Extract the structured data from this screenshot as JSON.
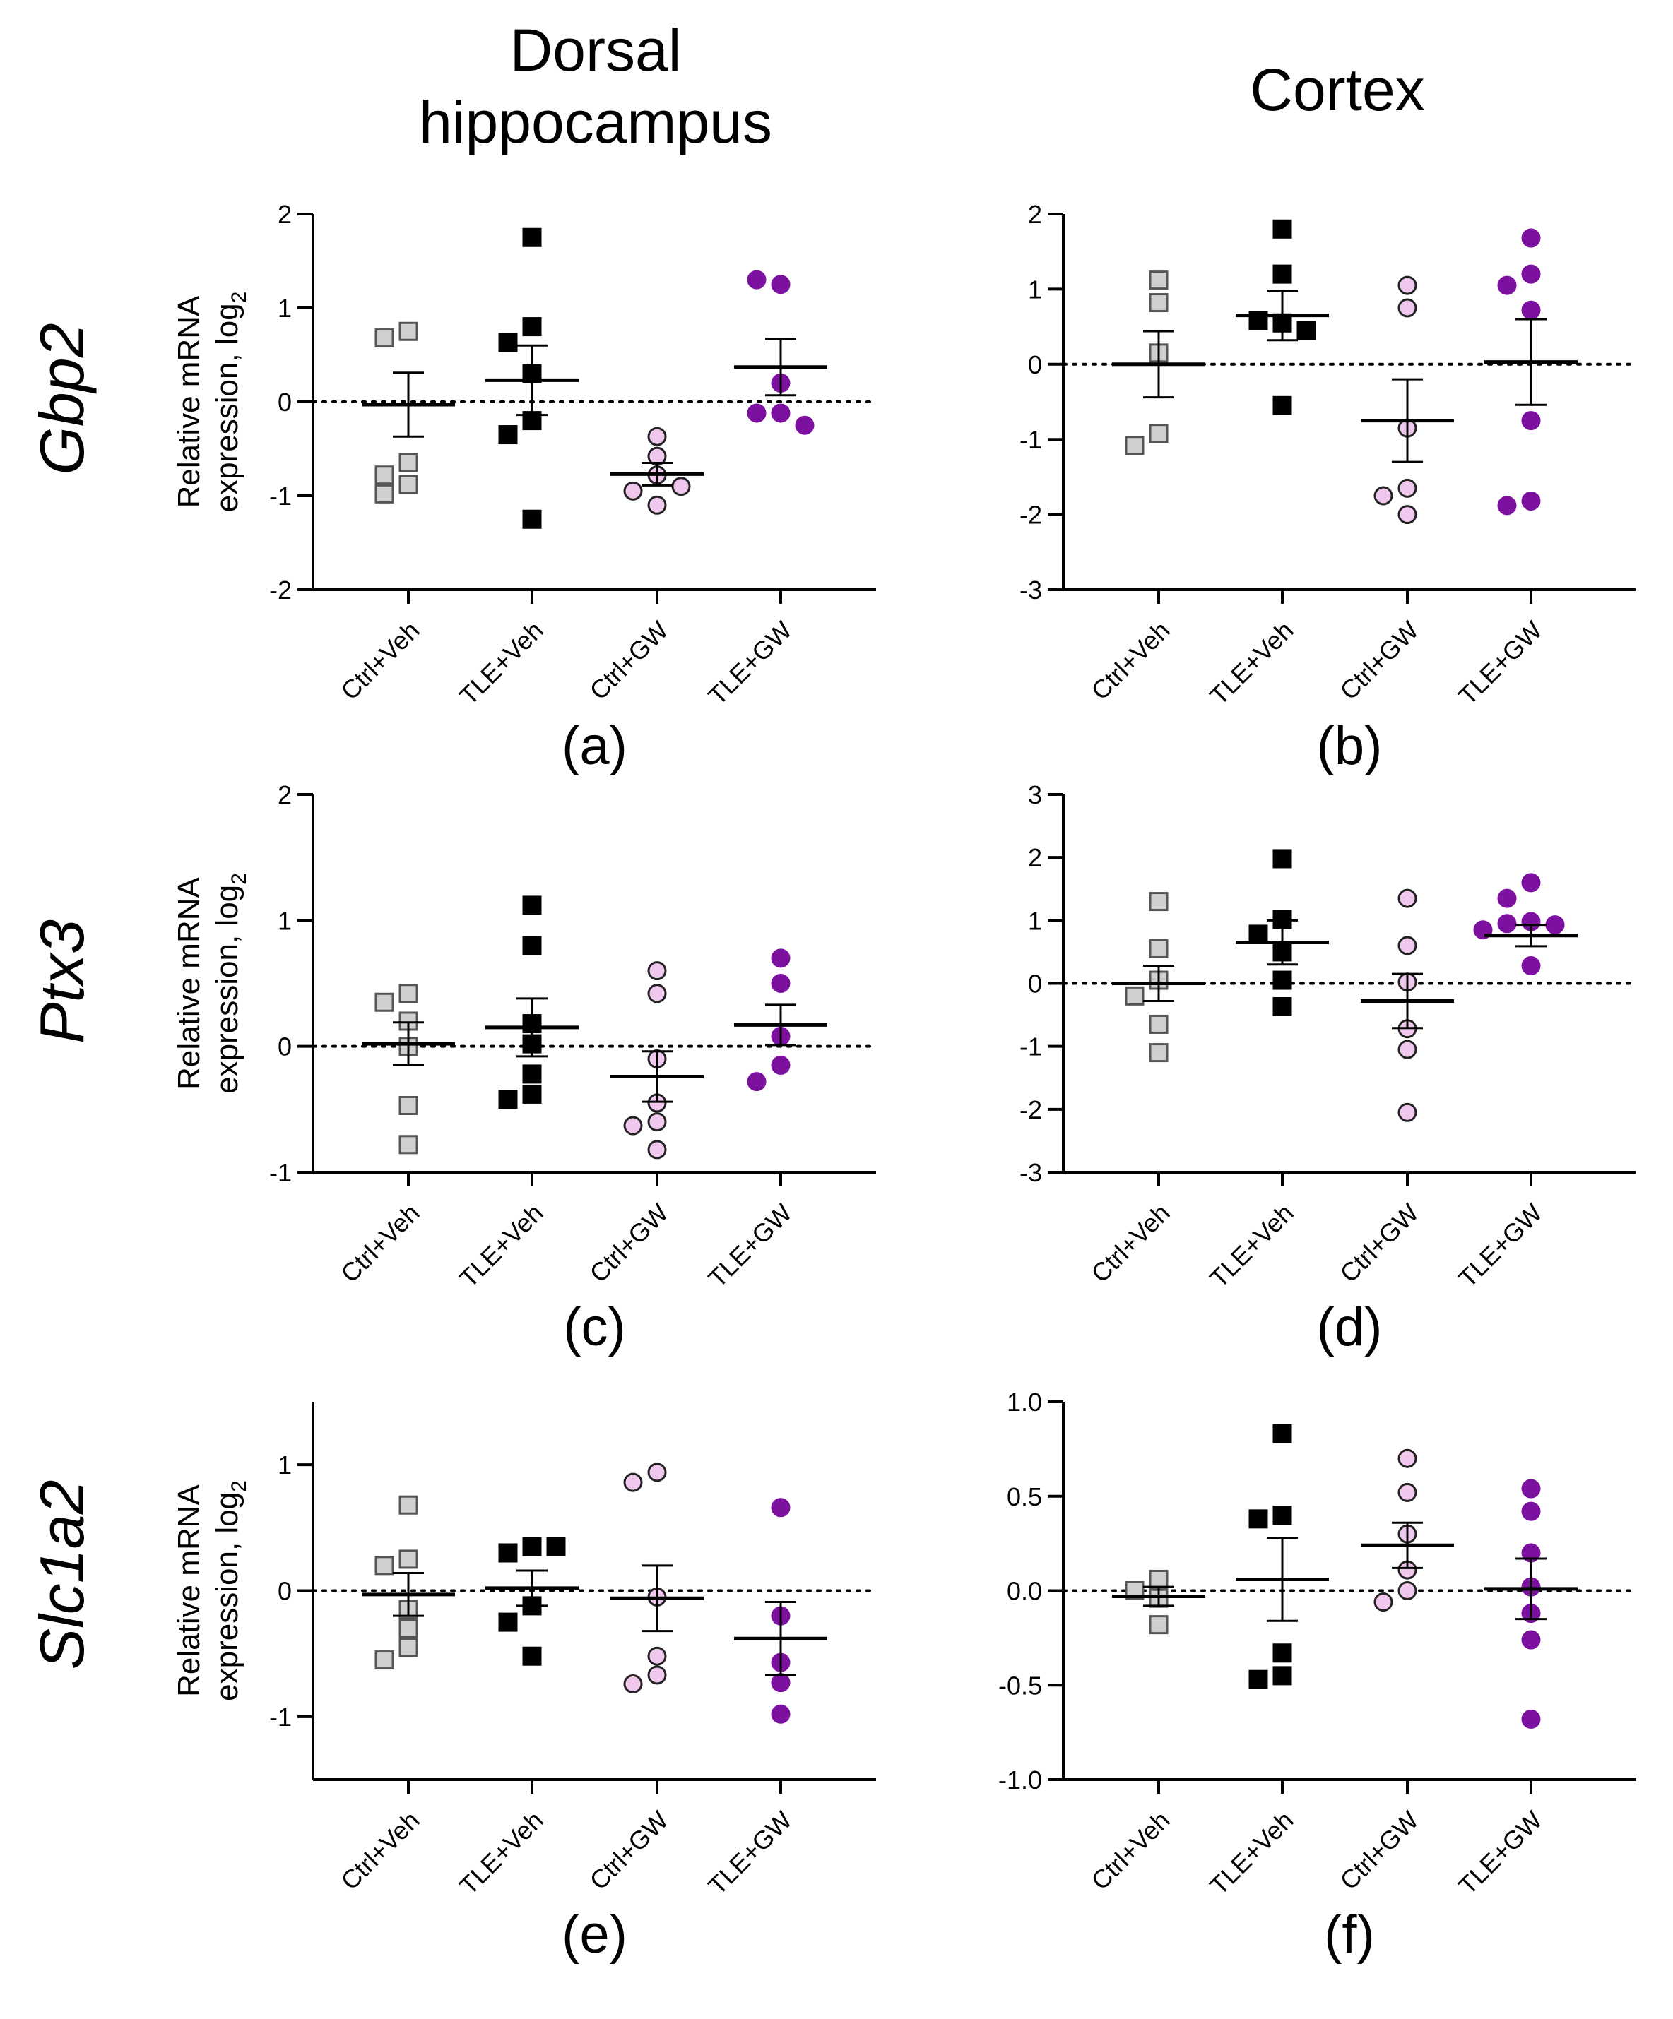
{
  "column_titles": {
    "dorsal": "Dorsal",
    "dorsal_line2": "hippocampus",
    "cortex": "Cortex"
  },
  "row_labels": [
    "Gbp2",
    "Ptx3",
    "Slc1a2"
  ],
  "ylabel_line1": "Relative mRNA",
  "ylabel_line2": "expression, log",
  "ylabel_sub": "2",
  "groups": [
    "Ctrl+Veh",
    "TLE+Veh",
    "Ctrl+GW",
    "TLE+GW"
  ],
  "group_colors": {
    "Ctrl+Veh": "#d0d0d0",
    "TLE+Veh": "#000000",
    "Ctrl+GW": "#f0c8ee",
    "TLE+GW": "#7b119e"
  },
  "chart_data": [
    {
      "id": "a",
      "panel_label": "(a)",
      "type": "scatter",
      "gene": "Gbp2",
      "region": "Dorsal hippocampus",
      "ylim": [
        -2,
        2
      ],
      "yticks": [
        "-2",
        "-1",
        "0",
        "1",
        "2"
      ],
      "series": [
        {
          "name": "Ctrl+Veh",
          "values": [
            0.75,
            0.68,
            -0.65,
            -0.78,
            -0.88,
            -0.98
          ],
          "mean": -0.03,
          "sem": 0.34
        },
        {
          "name": "TLE+Veh",
          "values": [
            1.75,
            0.8,
            0.63,
            0.3,
            -0.2,
            -0.35,
            -1.25
          ],
          "mean": 0.23,
          "sem": 0.37
        },
        {
          "name": "Ctrl+GW",
          "values": [
            -0.37,
            -0.58,
            -0.78,
            -0.95,
            -0.9,
            -1.1
          ],
          "mean": -0.77,
          "sem": 0.12
        },
        {
          "name": "TLE+GW",
          "values": [
            1.25,
            1.3,
            0.2,
            -0.12,
            -0.12,
            -0.25
          ],
          "mean": 0.37,
          "sem": 0.3
        }
      ]
    },
    {
      "id": "b",
      "panel_label": "(b)",
      "type": "scatter",
      "gene": "Gbp2",
      "region": "Cortex",
      "ylim": [
        -3,
        2
      ],
      "yticks": [
        "-3",
        "-2",
        "-1",
        "0",
        "1",
        "2"
      ],
      "series": [
        {
          "name": "Ctrl+Veh",
          "values": [
            1.12,
            0.82,
            0.15,
            -0.92,
            -1.08
          ],
          "mean": 0.0,
          "sem": 0.44
        },
        {
          "name": "TLE+Veh",
          "values": [
            1.8,
            1.2,
            0.55,
            0.58,
            0.45,
            -0.55
          ],
          "mean": 0.65,
          "sem": 0.33
        },
        {
          "name": "Ctrl+GW",
          "values": [
            1.05,
            0.75,
            -0.85,
            -1.65,
            -1.75,
            -2.0
          ],
          "mean": -0.75,
          "sem": 0.55
        },
        {
          "name": "TLE+GW",
          "values": [
            1.68,
            1.2,
            1.05,
            0.72,
            -0.75,
            -1.82,
            -1.88
          ],
          "mean": 0.03,
          "sem": 0.57
        }
      ]
    },
    {
      "id": "c",
      "panel_label": "(c)",
      "type": "scatter",
      "gene": "Ptx3",
      "region": "Dorsal hippocampus",
      "ylim": [
        -1,
        2
      ],
      "yticks": [
        "-1",
        "0",
        "1",
        "2"
      ],
      "series": [
        {
          "name": "Ctrl+Veh",
          "values": [
            0.42,
            0.35,
            0.2,
            0.0,
            -0.47,
            -0.78
          ],
          "mean": 0.02,
          "sem": 0.17
        },
        {
          "name": "TLE+Veh",
          "values": [
            1.12,
            0.8,
            0.18,
            0.02,
            -0.22,
            -0.38,
            -0.42
          ],
          "mean": 0.15,
          "sem": 0.23
        },
        {
          "name": "Ctrl+GW",
          "values": [
            0.6,
            0.42,
            -0.1,
            -0.45,
            -0.6,
            -0.63,
            -0.82
          ],
          "mean": -0.24,
          "sem": 0.2
        },
        {
          "name": "TLE+GW",
          "values": [
            0.7,
            0.5,
            0.08,
            -0.15,
            -0.28
          ],
          "mean": 0.17,
          "sem": 0.16
        }
      ]
    },
    {
      "id": "d",
      "panel_label": "(d)",
      "type": "scatter",
      "gene": "Ptx3",
      "region": "Cortex",
      "ylim": [
        -3,
        3
      ],
      "yticks": [
        "-3",
        "-2",
        "-1",
        "0",
        "1",
        "2",
        "3"
      ],
      "series": [
        {
          "name": "Ctrl+Veh",
          "values": [
            1.3,
            0.55,
            0.05,
            -0.2,
            -0.65,
            -1.1
          ],
          "mean": 0.0,
          "sem": 0.28
        },
        {
          "name": "TLE+Veh",
          "values": [
            1.98,
            1.02,
            0.78,
            0.5,
            0.05,
            -0.37
          ],
          "mean": 0.65,
          "sem": 0.35
        },
        {
          "name": "Ctrl+GW",
          "values": [
            1.35,
            0.6,
            0.02,
            -0.72,
            -1.05,
            -2.05
          ],
          "mean": -0.28,
          "sem": 0.43
        },
        {
          "name": "TLE+GW",
          "values": [
            1.6,
            1.35,
            0.98,
            0.95,
            0.93,
            0.85,
            0.28
          ],
          "mean": 0.76,
          "sem": 0.17
        }
      ]
    },
    {
      "id": "e",
      "panel_label": "(e)",
      "type": "scatter",
      "gene": "Slc1a2",
      "region": "Dorsal hippocampus",
      "ylim": [
        -1.5,
        1.5
      ],
      "yticks": [
        "-1",
        "0",
        "1"
      ],
      "series": [
        {
          "name": "Ctrl+Veh",
          "values": [
            0.68,
            0.25,
            0.2,
            -0.15,
            -0.3,
            -0.45,
            -0.55
          ],
          "mean": -0.03,
          "sem": 0.17
        },
        {
          "name": "TLE+Veh",
          "values": [
            0.35,
            0.3,
            0.35,
            -0.12,
            -0.25,
            -0.52
          ],
          "mean": 0.02,
          "sem": 0.14
        },
        {
          "name": "Ctrl+GW",
          "values": [
            0.94,
            0.86,
            -0.05,
            -0.52,
            -0.67,
            -0.74
          ],
          "mean": -0.06,
          "sem": 0.26
        },
        {
          "name": "TLE+GW",
          "values": [
            0.66,
            -0.2,
            -0.57,
            -0.73,
            -0.98
          ],
          "mean": -0.38,
          "sem": 0.29
        }
      ]
    },
    {
      "id": "f",
      "panel_label": "(f)",
      "type": "scatter",
      "gene": "Slc1a2",
      "region": "Cortex",
      "ylim": [
        -1.0,
        1.0
      ],
      "yticks": [
        "-1.0",
        "-0.5",
        "0.0",
        "0.5",
        "1.0"
      ],
      "series": [
        {
          "name": "Ctrl+Veh",
          "values": [
            0.06,
            0.0,
            -0.04,
            -0.18
          ],
          "mean": -0.03,
          "sem": 0.05
        },
        {
          "name": "TLE+Veh",
          "values": [
            0.83,
            0.4,
            0.38,
            -0.33,
            -0.45,
            -0.47
          ],
          "mean": 0.06,
          "sem": 0.22
        },
        {
          "name": "Ctrl+GW",
          "values": [
            0.7,
            0.52,
            0.3,
            0.11,
            0.0,
            -0.06
          ],
          "mean": 0.24,
          "sem": 0.12
        },
        {
          "name": "TLE+GW",
          "values": [
            0.54,
            0.42,
            0.2,
            0.02,
            -0.12,
            -0.26,
            -0.68
          ],
          "mean": 0.01,
          "sem": 0.16
        }
      ]
    }
  ]
}
